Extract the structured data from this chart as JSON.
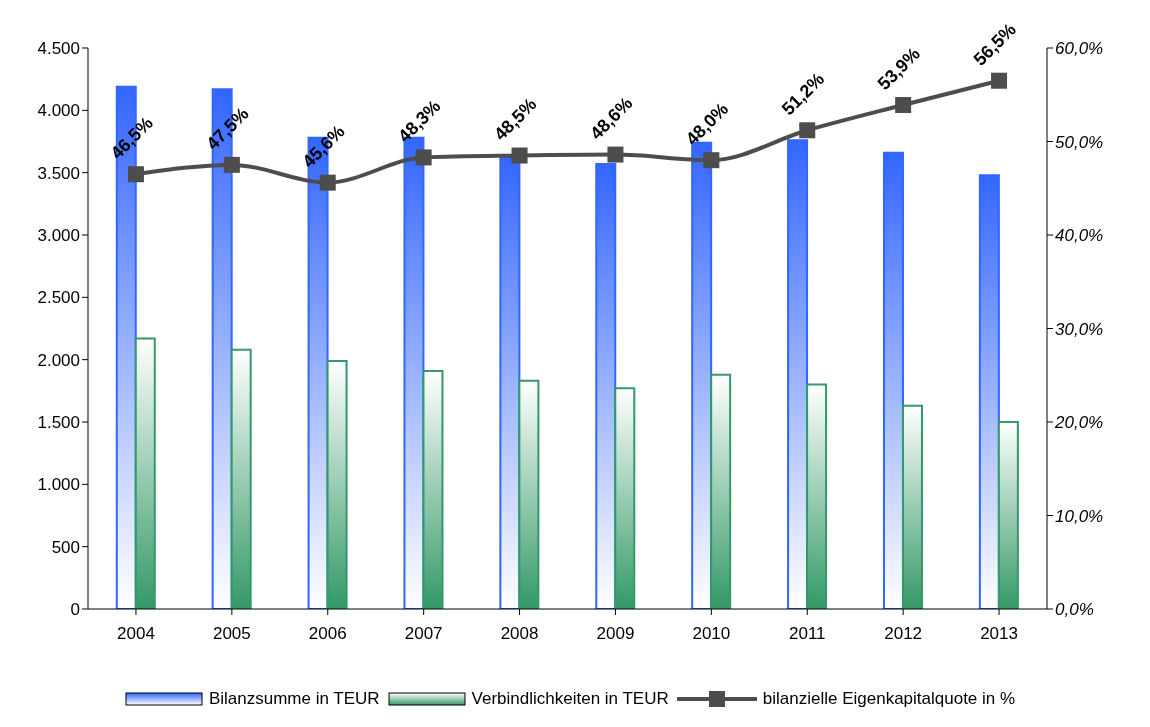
{
  "chart_data": {
    "type": "bar",
    "categories": [
      "2004",
      "2005",
      "2006",
      "2007",
      "2008",
      "2009",
      "2010",
      "2011",
      "2012",
      "2013"
    ],
    "series": [
      {
        "name": "Bilanzsumme in TEUR",
        "color": "#3366ff",
        "values": [
          4190,
          4170,
          3780,
          3780,
          3640,
          3570,
          3740,
          3760,
          3660,
          3480
        ]
      },
      {
        "name": "Verbindlichkeiten in TEUR",
        "color": "#339966",
        "values": [
          2170,
          2080,
          1990,
          1910,
          1830,
          1770,
          1880,
          1800,
          1630,
          1500
        ]
      },
      {
        "name": "bilanzielle Eigenkapitalquote in %",
        "type": "line",
        "axis": "y2",
        "color": "#4d4d4d",
        "marker": "square",
        "values": [
          46.5,
          47.5,
          45.6,
          48.3,
          48.5,
          48.6,
          48.0,
          51.2,
          53.9,
          56.5
        ],
        "value_labels": [
          "46,5%",
          "47,5%",
          "45,6%",
          "48,3%",
          "48,5%",
          "48,6%",
          "48,0%",
          "51,2%",
          "53,9%",
          "56,5%"
        ]
      }
    ],
    "ylim": [
      0,
      4500
    ],
    "yticks": [
      {
        "value": 0,
        "label": "0"
      },
      {
        "value": 500,
        "label": "500"
      },
      {
        "value": 1000,
        "label": "1.000"
      },
      {
        "value": 1500,
        "label": "1.500"
      },
      {
        "value": 2000,
        "label": "2.000"
      },
      {
        "value": 2500,
        "label": "2.500"
      },
      {
        "value": 3000,
        "label": "3.000"
      },
      {
        "value": 3500,
        "label": "3.500"
      },
      {
        "value": 4000,
        "label": "4.000"
      },
      {
        "value": 4500,
        "label": "4.500"
      }
    ],
    "y2lim": [
      0,
      60
    ],
    "y2ticks": [
      {
        "value": 0,
        "label": "0,0%"
      },
      {
        "value": 10,
        "label": "10,0%"
      },
      {
        "value": 20,
        "label": "20,0%"
      },
      {
        "value": 30,
        "label": "30,0%"
      },
      {
        "value": 40,
        "label": "40,0%"
      },
      {
        "value": 50,
        "label": "50,0%"
      },
      {
        "value": 60,
        "label": "60,0%"
      }
    ],
    "legend": "bottom",
    "grid": false
  }
}
